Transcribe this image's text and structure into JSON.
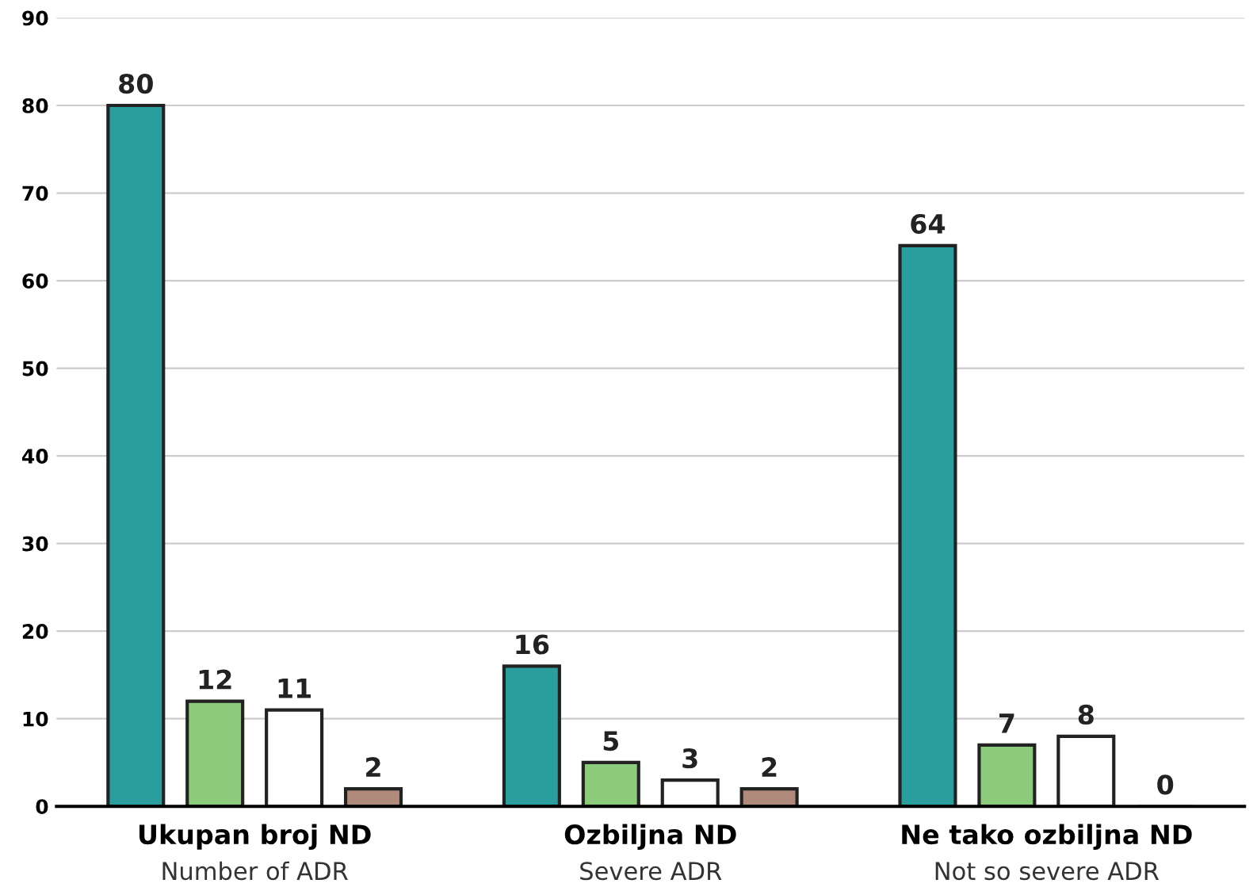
{
  "chart_data": {
    "type": "bar",
    "categories": [
      "Ukupan broj ND\nNumber of ADR",
      "Ozbiljna ND\nSevere ADR",
      "Ne tako ozbiljna ND\nNot so severe ADR"
    ],
    "series": [
      {
        "color": "#2a9d9d",
        "values": [
          80,
          16,
          64
        ]
      },
      {
        "color": "#8ccb7c",
        "values": [
          12,
          5,
          7
        ]
      },
      {
        "color": "#ffffff",
        "values": [
          11,
          3,
          8
        ]
      },
      {
        "color": "#b08b7b",
        "values": [
          2,
          2,
          0
        ]
      }
    ],
    "ylim": [
      0,
      90
    ],
    "yticks": [
      0,
      10,
      20,
      30,
      40,
      50,
      60,
      70,
      80,
      90
    ],
    "grid": "y",
    "data_labels": true
  }
}
